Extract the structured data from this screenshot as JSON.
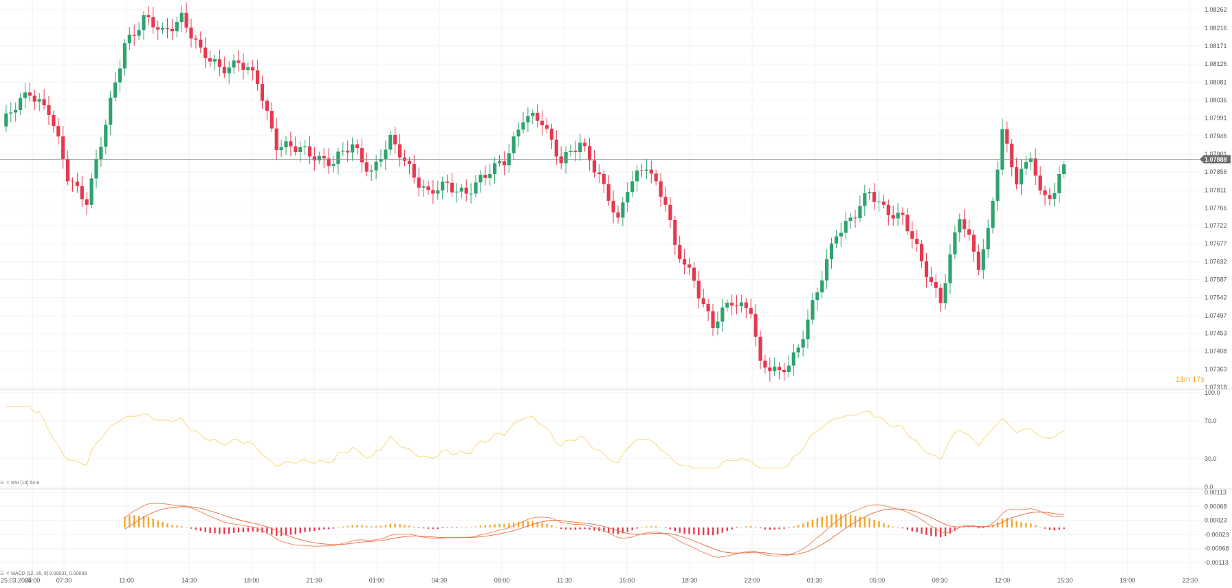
{
  "chart_data": [
    {
      "type": "candlestick",
      "instrument_price_last": "1.07888",
      "countdown": "13m 17s",
      "y_ticks": [
        "1.08262",
        "1.08216",
        "1.08171",
        "1.08126",
        "1.08081",
        "1.08036",
        "1.07991",
        "1.07946",
        "1.07901",
        "1.07856",
        "1.07811",
        "1.07766",
        "1.07722",
        "1.07677",
        "1.07632",
        "1.07587",
        "1.07542",
        "1.07497",
        "1.07453",
        "1.07408",
        "1.07363",
        "1.07318"
      ],
      "ylim": [
        1.07318,
        1.08262
      ],
      "x_ticks": [
        "25.03.2025",
        "04:00",
        "07:30",
        "11:00",
        "14:30",
        "18:00",
        "21:30",
        "01:00",
        "04:30",
        "08:00",
        "11:30",
        "15:00",
        "18:30",
        "22:00",
        "01:30",
        "05:00",
        "08:30",
        "12:00",
        "15:30",
        "19:00",
        "22:30"
      ],
      "anchors": [
        [
          0,
          1.0797
        ],
        [
          6,
          1.0806
        ],
        [
          10,
          1.0801
        ],
        [
          14,
          1.0784
        ],
        [
          18,
          1.0779
        ],
        [
          22,
          1.0797
        ],
        [
          26,
          1.0818
        ],
        [
          30,
          1.0824
        ],
        [
          34,
          1.082
        ],
        [
          38,
          1.0825
        ],
        [
          42,
          1.0815
        ],
        [
          46,
          1.0812
        ],
        [
          50,
          1.0813
        ],
        [
          54,
          1.0808
        ],
        [
          58,
          1.0793
        ],
        [
          62,
          1.0791
        ],
        [
          66,
          1.079
        ],
        [
          70,
          1.0788
        ],
        [
          74,
          1.0792
        ],
        [
          78,
          1.0786
        ],
        [
          82,
          1.0793
        ],
        [
          86,
          1.0787
        ],
        [
          90,
          1.078
        ],
        [
          94,
          1.0782
        ],
        [
          98,
          1.0781
        ],
        [
          102,
          1.0784
        ],
        [
          106,
          1.0789
        ],
        [
          110,
          1.0799
        ],
        [
          114,
          1.0798
        ],
        [
          118,
          1.0789
        ],
        [
          122,
          1.0792
        ],
        [
          126,
          1.0785
        ],
        [
          128,
          1.078
        ],
        [
          130,
          1.0773
        ],
        [
          132,
          1.0781
        ],
        [
          136,
          1.0788
        ],
        [
          140,
          1.0778
        ],
        [
          142,
          1.0766
        ],
        [
          146,
          1.0759
        ],
        [
          150,
          1.0747
        ],
        [
          154,
          1.0753
        ],
        [
          158,
          1.0752
        ],
        [
          160,
          1.0737
        ],
        [
          164,
          1.0735
        ],
        [
          168,
          1.0742
        ],
        [
          172,
          1.0755
        ],
        [
          176,
          1.0771
        ],
        [
          180,
          1.0775
        ],
        [
          183,
          1.078
        ],
        [
          186,
          1.0777
        ],
        [
          190,
          1.0774
        ],
        [
          194,
          1.0763
        ],
        [
          198,
          1.0754
        ],
        [
          202,
          1.0774
        ],
        [
          206,
          1.0763
        ],
        [
          208,
          1.0771
        ],
        [
          211,
          1.0795
        ],
        [
          214,
          1.0783
        ],
        [
          217,
          1.0791
        ],
        [
          219,
          1.078
        ],
        [
          222,
          1.0779
        ],
        [
          224,
          1.0788
        ]
      ],
      "series": [
        {
          "name": "price",
          "values": []
        }
      ]
    },
    {
      "type": "line",
      "indicator": "RSI [14] 54.9",
      "y_ticks": [
        "100.0",
        "70.0",
        "30.0",
        "0.0"
      ],
      "ylim": [
        0,
        100
      ],
      "x_ticks": [
        "25.03.2025",
        "04:00",
        "07:30",
        "11:00",
        "14:30",
        "18:00",
        "21:30",
        "01:00",
        "04:30",
        "08:00",
        "11:30",
        "15:00",
        "18:30",
        "22:00",
        "01:30",
        "05:00",
        "08:30",
        "12:00",
        "15:30",
        "19:00",
        "22:30"
      ],
      "line_color": "#f7e08a"
    },
    {
      "type": "bar",
      "indicator": "MACD [12, 26, 9] 0.00031, 0.00038",
      "y_ticks": [
        "0.00113",
        "0.00068",
        "0.00023",
        "-0.00023",
        "-0.00068",
        "-0.00113"
      ],
      "ylim": [
        -0.00113,
        0.00113
      ],
      "x_ticks": [
        "25.03.2025",
        "04:00",
        "07:30",
        "11:00",
        "14:30",
        "18:00",
        "21:30",
        "01:00",
        "04:30",
        "08:00",
        "11:30",
        "15:00",
        "18:30",
        "22:00",
        "01:30",
        "05:00",
        "08:30",
        "12:00",
        "15:30",
        "19:00",
        "22:30"
      ],
      "colors": {
        "histogram_up": "#f5a623",
        "histogram_down": "#e53950",
        "macd": "#f08a5d",
        "signal": "#e8734a"
      }
    }
  ],
  "colors": {
    "candle_up": "#2ea36f",
    "candle_down": "#e53950",
    "grid": "#f2f2f2",
    "axis_text": "#555555",
    "price_line": "#888888",
    "price_badge_bg": "#6b6b6b",
    "countdown": "#f5a623"
  }
}
